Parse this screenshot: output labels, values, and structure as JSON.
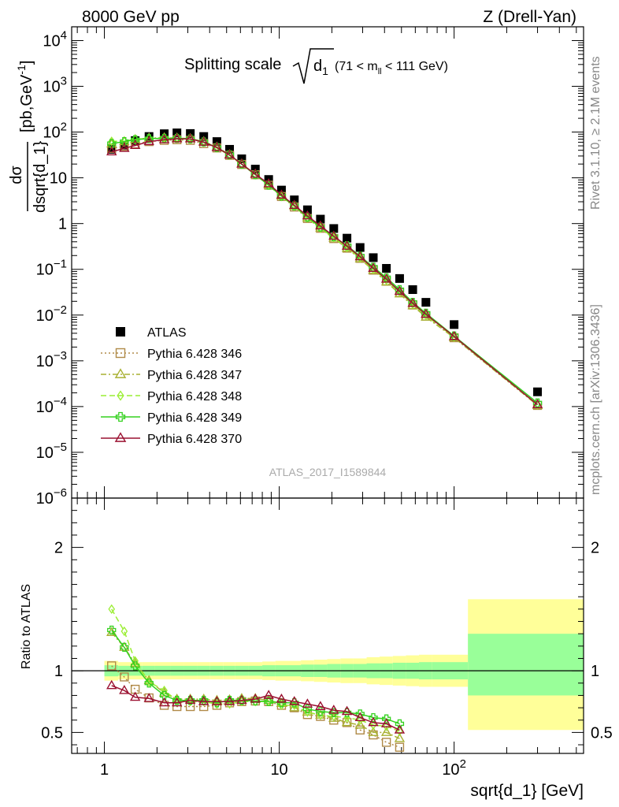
{
  "header": {
    "left": "8000 GeV pp",
    "right": "Z (Drell-Yan)"
  },
  "side_labels": {
    "rivet": "Rivet 3.1.10, ≥ 2.1M events",
    "mcplots": "mcplots.cern.ch [arXiv:1306.3436]"
  },
  "watermark": "ATLAS_2017_I1589844",
  "colors": {
    "atlas": "#000000",
    "p346": "#b08a48",
    "p347": "#a8b032",
    "p348": "#9aee32",
    "p349": "#33d11e",
    "p370": "#9a1030",
    "band_outer": "#ffff99",
    "band_inner": "#99ff99"
  },
  "chart_data": [
    {
      "type": "scatter",
      "panel": "main",
      "title": {
        "prefix": "Splitting scale",
        "root_arg": "d",
        "root_sub": "1",
        "range_pre": "(71 < m",
        "range_sub": "ll",
        "range_post": " < 111 GeV)"
      },
      "ylabel": {
        "num": "dσ",
        "den": "dsqrt{d_1}",
        "unit_pre": "[pb,GeV",
        "unit_sup": "-1",
        "unit_post": "]"
      },
      "xscale": "log",
      "yscale": "log",
      "xlim": [
        0.65,
        550
      ],
      "ylim": [
        1e-06,
        20000
      ],
      "x_ticks": [
        {
          "v": 1,
          "label": "1"
        },
        {
          "v": 10,
          "label": "10"
        },
        {
          "v": 100,
          "label": "10",
          "sup": "2"
        }
      ],
      "y_ticks": [
        {
          "v": 10000.0,
          "label": "10",
          "sup": "4"
        },
        {
          "v": 1000.0,
          "label": "10",
          "sup": "3"
        },
        {
          "v": 100.0,
          "label": "10",
          "sup": "2"
        },
        {
          "v": 10,
          "label": "10"
        },
        {
          "v": 1,
          "label": "1"
        },
        {
          "v": 0.1,
          "label": "10",
          "sup": "−1"
        },
        {
          "v": 0.01,
          "label": "10",
          "sup": "−2"
        },
        {
          "v": 0.001,
          "label": "10",
          "sup": "−3"
        },
        {
          "v": 0.0001,
          "label": "10",
          "sup": "−4"
        },
        {
          "v": 1e-05,
          "label": "10",
          "sup": "−5"
        },
        {
          "v": 1e-06,
          "label": "10",
          "sup": "−6"
        }
      ],
      "legend_position": "lower-left",
      "series": [
        {
          "name": "ATLAS",
          "key": "atlas",
          "marker": "square",
          "x": [
            1.1,
            1.3,
            1.5,
            1.8,
            2.2,
            2.6,
            3.1,
            3.7,
            4.4,
            5.2,
            6.1,
            7.3,
            8.7,
            10.3,
            12.2,
            14.5,
            17.2,
            20.5,
            24.4,
            29,
            34.5,
            41,
            48.8,
            58,
            69,
            100,
            300
          ],
          "y": [
            42,
            52,
            65,
            80,
            92,
            96,
            93,
            80,
            62,
            42,
            26,
            15.5,
            9.2,
            5.4,
            3.3,
            2.0,
            1.25,
            0.78,
            0.48,
            0.3,
            0.18,
            0.105,
            0.063,
            0.036,
            0.019,
            0.0062,
            0.00021
          ]
        },
        {
          "name": "Pythia 6.428 346",
          "key": "p346",
          "marker": "open-square",
          "dash": "2,3",
          "x": [
            1.1,
            1.3,
            1.5,
            1.8,
            2.2,
            2.6,
            3.1,
            3.7,
            4.4,
            5.2,
            6.1,
            7.3,
            8.7,
            10.3,
            12.2,
            14.5,
            17.2,
            20.5,
            24.4,
            29,
            34.5,
            41,
            48.8,
            58,
            69,
            100,
            300
          ],
          "y": [
            44,
            49,
            55,
            62,
            66,
            68,
            66,
            56,
            45,
            31,
            19.6,
            11.7,
            6.9,
            3.9,
            2.3,
            1.29,
            0.79,
            0.47,
            0.29,
            0.174,
            0.096,
            0.055,
            0.031,
            0.0166,
            0.0095,
            0.0032,
            0.000106
          ]
        },
        {
          "name": "Pythia 6.428 347",
          "key": "p347",
          "marker": "open-triangle",
          "dash": "7,3,2,3",
          "x": [
            1.1,
            1.3,
            1.5,
            1.8,
            2.2,
            2.6,
            3.1,
            3.7,
            4.4,
            5.2,
            6.1,
            7.3,
            8.7,
            10.3,
            12.2,
            14.5,
            17.2,
            20.5,
            24.4,
            29,
            34.5,
            41,
            48.8,
            58,
            69,
            100,
            300
          ],
          "y": [
            55,
            62,
            69,
            74,
            75,
            74,
            72,
            62,
            47,
            32,
            20.1,
            12,
            7,
            4.0,
            2.4,
            1.33,
            0.8,
            0.48,
            0.29,
            0.17,
            0.095,
            0.053,
            0.029,
            0.016,
            0.009,
            0.0032,
            0.000106
          ]
        },
        {
          "name": "Pythia 6.428 348",
          "key": "p348",
          "marker": "open-diamond",
          "dash": "7,4",
          "x": [
            1.1,
            1.3,
            1.5,
            1.8,
            2.2,
            2.6,
            3.1,
            3.7,
            4.4,
            5.2,
            6.1,
            7.3,
            8.7,
            10.3,
            12.2,
            14.5,
            17.2,
            20.5,
            24.4,
            29,
            34.5,
            41,
            48.8,
            58,
            69,
            100,
            300
          ],
          "y": [
            63,
            63,
            70,
            73,
            72,
            73,
            70,
            60,
            45,
            31,
            19.5,
            11.6,
            6.9,
            3.9,
            2.37,
            1.33,
            0.8,
            0.49,
            0.3,
            0.178,
            0.1,
            0.058,
            0.032,
            0.0172,
            0.0098,
            0.0033,
            0.00011
          ]
        },
        {
          "name": "Pythia 6.428 349",
          "key": "p349",
          "marker": "open-cross",
          "dash": "",
          "x": [
            1.1,
            1.3,
            1.5,
            1.8,
            2.2,
            2.6,
            3.1,
            3.7,
            4.4,
            5.2,
            6.1,
            7.3,
            8.7,
            10.3,
            12.2,
            14.5,
            17.2,
            20.5,
            24.4,
            29,
            34.5,
            41,
            48.8,
            58,
            69,
            100,
            300
          ],
          "y": [
            56,
            62,
            68,
            72,
            73,
            73,
            71,
            61,
            46,
            32,
            19.8,
            11.7,
            6.9,
            4.0,
            2.45,
            1.38,
            0.84,
            0.52,
            0.33,
            0.195,
            0.112,
            0.066,
            0.036,
            0.019,
            0.011,
            0.0035,
            0.00012
          ]
        },
        {
          "name": "Pythia 6.428 370",
          "key": "p370",
          "marker": "open-triangle",
          "dash": "",
          "x": [
            1.1,
            1.3,
            1.5,
            1.8,
            2.2,
            2.6,
            3.1,
            3.7,
            4.4,
            5.2,
            6.1,
            7.3,
            8.7,
            10.3,
            12.2,
            14.5,
            17.2,
            20.5,
            24.4,
            29,
            34.5,
            41,
            48.8,
            58,
            69,
            100,
            300
          ],
          "y": [
            37,
            44,
            51,
            62,
            68,
            71,
            71,
            60,
            46,
            31.5,
            20,
            12,
            7.4,
            4.2,
            2.5,
            1.47,
            0.89,
            0.53,
            0.32,
            0.188,
            0.105,
            0.061,
            0.033,
            0.018,
            0.0104,
            0.0034,
            0.00011
          ]
        }
      ]
    },
    {
      "type": "line",
      "panel": "ratio",
      "ylabel": "Ratio to ATLAS",
      "xlabel": "sqrt{d_1} [GeV]",
      "xscale": "log",
      "xlim": [
        0.65,
        550
      ],
      "ylim": [
        0.33,
        2.4
      ],
      "y_ticks": [
        {
          "v": 2,
          "label": "2"
        },
        {
          "v": 1,
          "label": "1"
        },
        {
          "v": 0.5,
          "label": "0.5"
        }
      ],
      "bands": {
        "edges": [
          1,
          1.2,
          1.4,
          1.65,
          1.95,
          2.4,
          2.85,
          3.4,
          4,
          4.8,
          5.6,
          6.7,
          8,
          9.5,
          11.2,
          13.3,
          15.8,
          18.8,
          22.4,
          26.6,
          31.6,
          37.5,
          44.6,
          53,
          63,
          75,
          120,
          550
        ],
        "outer_lo": [
          0.92,
          0.93,
          0.93,
          0.93,
          0.93,
          0.93,
          0.93,
          0.93,
          0.93,
          0.93,
          0.93,
          0.93,
          0.925,
          0.92,
          0.92,
          0.915,
          0.91,
          0.905,
          0.9,
          0.9,
          0.89,
          0.885,
          0.88,
          0.875,
          0.87,
          0.87,
          0.52
        ],
        "outer_hi": [
          1.08,
          1.07,
          1.07,
          1.07,
          1.07,
          1.07,
          1.07,
          1.07,
          1.07,
          1.07,
          1.07,
          1.07,
          1.075,
          1.08,
          1.08,
          1.085,
          1.09,
          1.095,
          1.1,
          1.1,
          1.11,
          1.115,
          1.12,
          1.125,
          1.13,
          1.13,
          1.58
        ],
        "inner_lo": [
          0.955,
          0.96,
          0.96,
          0.96,
          0.96,
          0.96,
          0.96,
          0.96,
          0.96,
          0.96,
          0.96,
          0.96,
          0.955,
          0.955,
          0.955,
          0.95,
          0.95,
          0.945,
          0.945,
          0.945,
          0.94,
          0.94,
          0.935,
          0.935,
          0.93,
          0.93,
          0.8
        ],
        "inner_hi": [
          1.045,
          1.04,
          1.04,
          1.04,
          1.04,
          1.04,
          1.04,
          1.04,
          1.04,
          1.04,
          1.04,
          1.04,
          1.045,
          1.045,
          1.045,
          1.05,
          1.05,
          1.055,
          1.055,
          1.055,
          1.06,
          1.06,
          1.065,
          1.065,
          1.07,
          1.07,
          1.3
        ]
      },
      "series": [
        {
          "key": "p346",
          "marker": "open-square",
          "dash": "2,3",
          "x": [
            1.1,
            1.3,
            1.5,
            1.8,
            2.2,
            2.6,
            3.1,
            3.7,
            4.4,
            5.2,
            6.1,
            7.3,
            8.7,
            10.3,
            12.2,
            14.5,
            17.2,
            20.5,
            24.4,
            29,
            34.5,
            41,
            48.8
          ],
          "y": [
            1.04,
            0.95,
            0.85,
            0.78,
            0.72,
            0.71,
            0.71,
            0.71,
            0.72,
            0.74,
            0.75,
            0.755,
            0.75,
            0.72,
            0.7,
            0.645,
            0.63,
            0.6,
            0.58,
            0.52,
            0.48,
            0.42,
            0.38
          ]
        },
        {
          "key": "p347",
          "marker": "open-triangle",
          "dash": "7,3,2,3",
          "x": [
            1.1,
            1.3,
            1.5,
            1.8,
            2.2,
            2.6,
            3.1,
            3.7,
            4.4,
            5.2,
            6.1,
            7.3,
            8.7,
            10.3,
            12.2,
            14.5,
            17.2,
            20.5,
            24.4,
            29,
            34.5,
            41,
            48.8
          ],
          "y": [
            1.31,
            1.19,
            1.06,
            0.92,
            0.82,
            0.77,
            0.77,
            0.77,
            0.76,
            0.765,
            0.775,
            0.775,
            0.76,
            0.735,
            0.7,
            0.665,
            0.64,
            0.615,
            0.58,
            0.56,
            0.5,
            0.5,
            0.45
          ]
        },
        {
          "key": "p348",
          "marker": "open-diamond",
          "dash": "7,4",
          "x": [
            1.1,
            1.3,
            1.5,
            1.8,
            2.2,
            2.6,
            3.1,
            3.7,
            4.4,
            5.2,
            6.1,
            7.3,
            8.7,
            10.3,
            12.2,
            14.5,
            17.2,
            20.5,
            24.4,
            29,
            34.5,
            41,
            48.8
          ],
          "y": [
            1.5,
            1.32,
            1.08,
            0.91,
            0.84,
            0.76,
            0.75,
            0.75,
            0.73,
            0.73,
            0.75,
            0.75,
            0.75,
            0.72,
            0.72,
            0.665,
            0.64,
            0.63,
            0.62,
            0.6,
            0.56,
            0.55,
            0.51
          ]
        },
        {
          "key": "p349",
          "marker": "open-cross",
          "dash": "",
          "x": [
            1.1,
            1.3,
            1.5,
            1.8,
            2.2,
            2.6,
            3.1,
            3.7,
            4.4,
            5.2,
            6.1,
            7.3,
            8.7,
            10.3,
            12.2,
            14.5,
            17.2,
            20.5,
            24.4,
            29,
            34.5,
            41,
            48.8
          ],
          "y": [
            1.33,
            1.19,
            1.04,
            0.9,
            0.8,
            0.76,
            0.76,
            0.76,
            0.74,
            0.76,
            0.76,
            0.755,
            0.75,
            0.74,
            0.74,
            0.69,
            0.67,
            0.66,
            0.66,
            0.65,
            0.62,
            0.61,
            0.57
          ]
        },
        {
          "key": "p370",
          "marker": "open-triangle",
          "dash": "",
          "x": [
            1.1,
            1.3,
            1.5,
            1.8,
            2.2,
            2.6,
            3.1,
            3.7,
            4.4,
            5.2,
            6.1,
            7.3,
            8.7,
            10.3,
            12.2,
            14.5,
            17.2,
            20.5,
            24.4,
            29,
            34.5,
            41,
            48.8
          ],
          "y": [
            0.88,
            0.84,
            0.785,
            0.775,
            0.74,
            0.74,
            0.76,
            0.75,
            0.75,
            0.75,
            0.76,
            0.77,
            0.8,
            0.77,
            0.75,
            0.73,
            0.71,
            0.68,
            0.67,
            0.62,
            0.58,
            0.57,
            0.52
          ]
        }
      ]
    }
  ]
}
